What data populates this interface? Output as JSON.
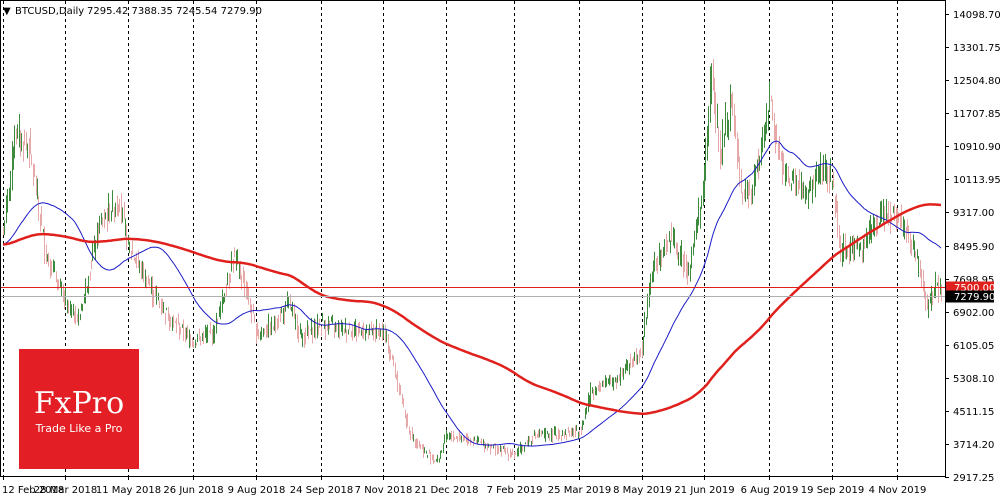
{
  "header": {
    "arrow": "▼",
    "symbol": "BTCUSD,Daily",
    "ohlc": "7295.42 7388.35 7245.54 7279.90"
  },
  "brand": {
    "name": "FxPro",
    "tagline": "Trade Like a Pro",
    "color": "#e31e24"
  },
  "colors": {
    "up_candle": "#3c8a3c",
    "down_candle": "#e6a8a8",
    "fast_ma": "#1c1cc8",
    "slow_ma": "#e0201c",
    "level_line": "#e0201c",
    "price_line": "#b0b0b0",
    "grid": "#000000"
  },
  "chart_data": {
    "type": "candlestick",
    "symbol": "BTCUSD",
    "timeframe": "Daily",
    "ylim": [
      2917.25,
      14098.7
    ],
    "x_ticks": [
      "12 Feb 2018",
      "28 Mar 2018",
      "11 May 2018",
      "26 Jun 2018",
      "9 Aug 2018",
      "24 Sep 2018",
      "7 Nov 2018",
      "21 Dec 2018",
      "7 Feb 2019",
      "25 Mar 2019",
      "8 May 2019",
      "21 Jun 2019",
      "6 Aug 2019",
      "19 Sep 2019",
      "4 Nov 2019"
    ],
    "y_ticks": [
      "14098.70",
      "13301.75",
      "12504.80",
      "11707.85",
      "10910.90",
      "10113.95",
      "9317.00",
      "8495.90",
      "7698.95",
      "6902.00",
      "6105.05",
      "5308.10",
      "4511.15",
      "3714.20",
      "2917.25"
    ],
    "level_line": {
      "value": 7500.0,
      "label": "7500.00"
    },
    "last_price": {
      "value": 7279.9,
      "label": "7279.90"
    },
    "close_anchors": [
      [
        "12 Feb 2018",
        8800
      ],
      [
        "20 Feb 2018",
        11200
      ],
      [
        "2 Mar 2018",
        10900
      ],
      [
        "14 Mar 2018",
        8300
      ],
      [
        "28 Mar 2018",
        7100
      ],
      [
        "6 Apr 2018",
        6700
      ],
      [
        "20 Apr 2018",
        8900
      ],
      [
        "27 Apr 2018",
        9300
      ],
      [
        "5 May 2018",
        9600
      ],
      [
        "11 May 2018",
        8500
      ],
      [
        "28 May 2018",
        7400
      ],
      [
        "10 Jun 2018",
        6700
      ],
      [
        "26 Jun 2018",
        6200
      ],
      [
        "10 Jul 2018",
        6400
      ],
      [
        "24 Jul 2018",
        8200
      ],
      [
        "1 Aug 2018",
        7600
      ],
      [
        "9 Aug 2018",
        6400
      ],
      [
        "20 Aug 2018",
        6500
      ],
      [
        "1 Sep 2018",
        7100
      ],
      [
        "10 Sep 2018",
        6300
      ],
      [
        "24 Sep 2018",
        6600
      ],
      [
        "10 Oct 2018",
        6500
      ],
      [
        "7 Nov 2018",
        6400
      ],
      [
        "14 Nov 2018",
        5600
      ],
      [
        "25 Nov 2018",
        4000
      ],
      [
        "6 Dec 2018",
        3500
      ],
      [
        "15 Dec 2018",
        3300
      ],
      [
        "21 Dec 2018",
        3900
      ],
      [
        "5 Jan 2019",
        3850
      ],
      [
        "7 Feb 2019",
        3450
      ],
      [
        "20 Feb 2019",
        3900
      ],
      [
        "25 Mar 2019",
        4000
      ],
      [
        "2 Apr 2019",
        5000
      ],
      [
        "20 Apr 2019",
        5300
      ],
      [
        "8 May 2019",
        6000
      ],
      [
        "14 May 2019",
        7800
      ],
      [
        "28 May 2019",
        8700
      ],
      [
        "10 Jun 2019",
        7900
      ],
      [
        "21 Jun 2019",
        10100
      ],
      [
        "26 Jun 2019",
        12800
      ],
      [
        "2 Jul 2019",
        10600
      ],
      [
        "10 Jul 2019",
        12100
      ],
      [
        "17 Jul 2019",
        9700
      ],
      [
        "24 Jul 2019",
        9800
      ],
      [
        "6 Aug 2019",
        11900
      ],
      [
        "15 Aug 2019",
        10300
      ],
      [
        "1 Sep 2019",
        9700
      ],
      [
        "10 Sep 2019",
        10300
      ],
      [
        "19 Sep 2019",
        10100
      ],
      [
        "25 Sep 2019",
        8400
      ],
      [
        "10 Oct 2019",
        8500
      ],
      [
        "25 Oct 2019",
        9300
      ],
      [
        "4 Nov 2019",
        9300
      ],
      [
        "12 Nov 2019",
        8700
      ],
      [
        "19 Nov 2019",
        8000
      ],
      [
        "25 Nov 2019",
        7000
      ],
      [
        "1 Dec 2019",
        7500
      ],
      [
        "5 Dec 2019",
        7280
      ]
    ],
    "series": [
      {
        "values_ref": "close_anchors",
        "kind": "candles"
      },
      {
        "kind": "moving_average",
        "period": 50
      },
      {
        "kind": "moving_average",
        "period": 200
      }
    ]
  }
}
